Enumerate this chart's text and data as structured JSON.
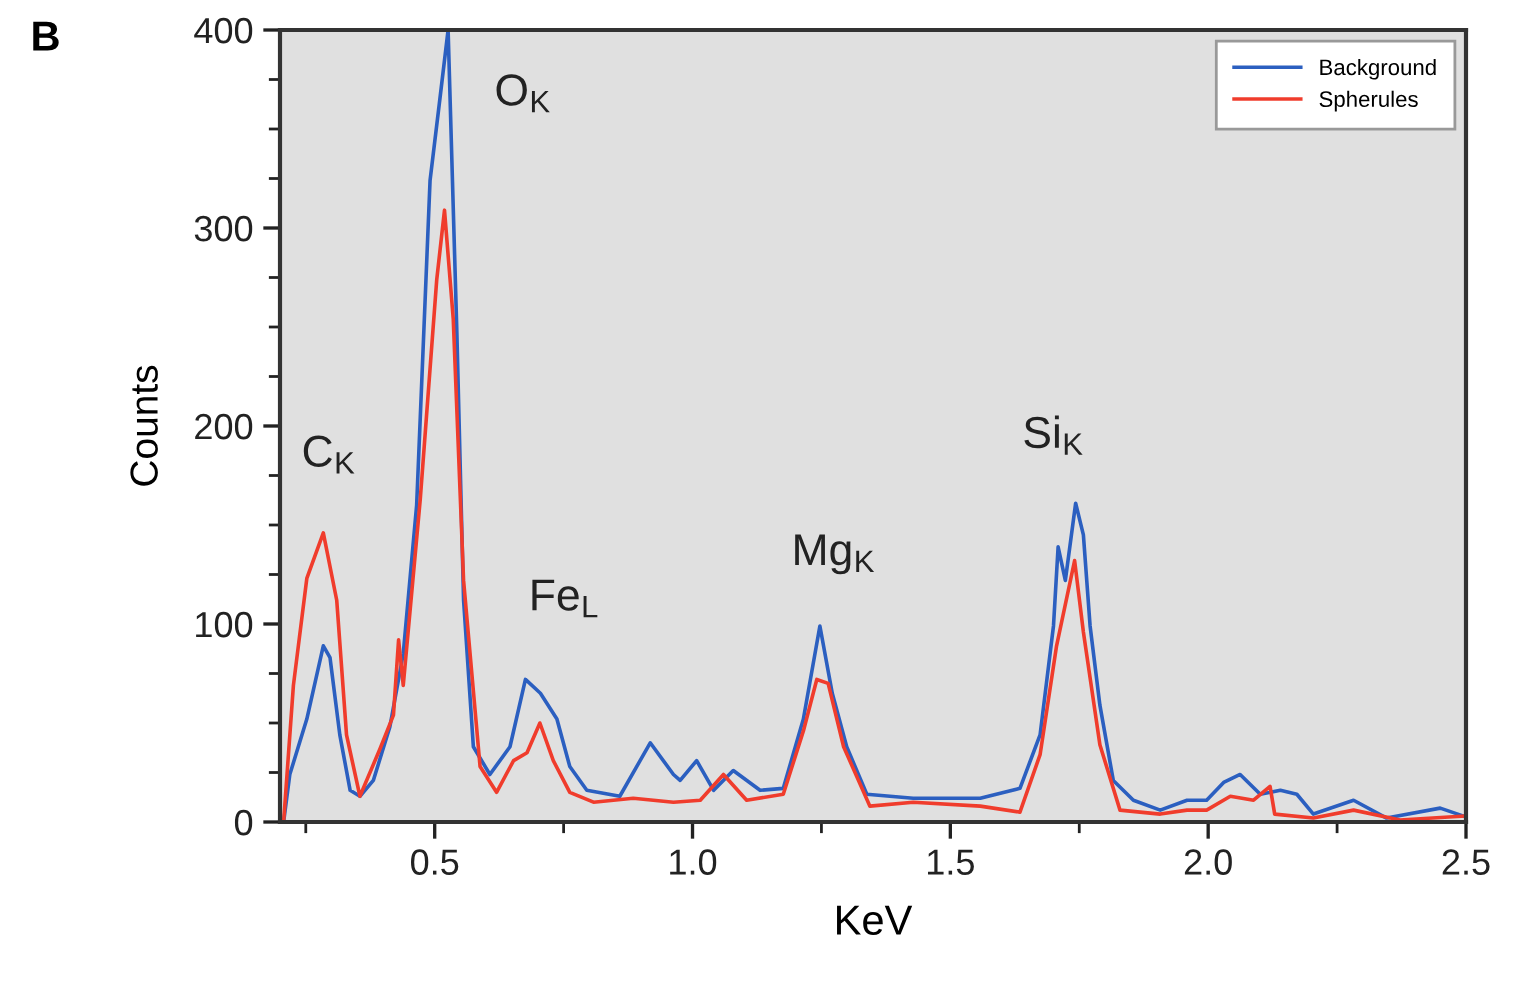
{
  "chart_data": {
    "type": "line",
    "xlabel": "KeV",
    "ylabel": "Counts",
    "xlim": [
      0.2,
      2.5
    ],
    "ylim": [
      0,
      400
    ],
    "xticks": [
      {
        "value": 0.25,
        "label": null
      },
      0.5,
      {
        "value": 0.75,
        "label": null
      },
      {
        "value": 1,
        "label": "1.0"
      },
      {
        "value": 1.25,
        "label": null
      },
      1.5,
      {
        "value": 1.75,
        "label": null
      },
      {
        "value": 2,
        "label": "2.0"
      },
      {
        "value": 2.25,
        "label": null
      },
      2.5
    ],
    "yticks": [
      0,
      {
        "value": 25,
        "label": null
      },
      {
        "value": 50,
        "label": null
      },
      {
        "value": 75,
        "label": null
      },
      100,
      {
        "value": 125,
        "label": null
      },
      {
        "value": 150,
        "label": null
      },
      {
        "value": 175,
        "label": null
      },
      200,
      {
        "value": 225,
        "label": null
      },
      {
        "value": 250,
        "label": null
      },
      {
        "value": 275,
        "label": null
      },
      300,
      {
        "value": 325,
        "label": null
      },
      {
        "value": 350,
        "label": null
      },
      {
        "value": 375,
        "label": null
      },
      400
    ],
    "grid": false,
    "legend": "top right",
    "marker": "none",
    "line_style": "solid",
    "series": [
      {
        "name": "Background",
        "color": "#2b5fc0",
        "x": [
          0.207,
          0.219,
          0.252,
          0.284,
          0.297,
          0.316,
          0.336,
          0.355,
          0.381,
          0.413,
          0.439,
          0.465,
          0.491,
          0.51,
          0.526,
          0.543,
          0.556,
          0.575,
          0.607,
          0.646,
          0.676,
          0.705,
          0.737,
          0.762,
          0.795,
          0.859,
          0.918,
          0.963,
          0.976,
          1.008,
          1.041,
          1.079,
          1.131,
          1.176,
          1.215,
          1.247,
          1.271,
          1.299,
          1.338,
          1.428,
          1.558,
          1.635,
          1.674,
          1.7,
          1.709,
          1.723,
          1.743,
          1.758,
          1.771,
          1.79,
          1.816,
          1.855,
          1.907,
          1.959,
          1.997,
          2.03,
          2.062,
          2.101,
          2.14,
          2.172,
          2.204,
          2.282,
          2.346,
          2.45,
          2.495
        ],
        "values": [
          0,
          24,
          52,
          89,
          83,
          44,
          16,
          13,
          21,
          48,
          85,
          160,
          324,
          365,
          400,
          247,
          112,
          38,
          24,
          38,
          72,
          65,
          52,
          28,
          16,
          13,
          40,
          24,
          21,
          31,
          16,
          26,
          16,
          17,
          52,
          99,
          65,
          38,
          14,
          12,
          12,
          17,
          44,
          99,
          139,
          122,
          161,
          145,
          99,
          59,
          21,
          11,
          6,
          11,
          11,
          20,
          24,
          14,
          16,
          14,
          4,
          11,
          2,
          7,
          3
        ]
      },
      {
        "name": "Spherules",
        "color": "#f03c2c",
        "x": [
          0.207,
          0.226,
          0.252,
          0.284,
          0.31,
          0.329,
          0.355,
          0.394,
          0.42,
          0.43,
          0.439,
          0.472,
          0.504,
          0.519,
          0.536,
          0.556,
          0.588,
          0.62,
          0.653,
          0.679,
          0.704,
          0.73,
          0.762,
          0.808,
          0.885,
          0.963,
          1.015,
          1.06,
          1.105,
          1.176,
          1.215,
          1.241,
          1.263,
          1.293,
          1.344,
          1.428,
          1.558,
          1.635,
          1.674,
          1.706,
          1.741,
          1.758,
          1.79,
          1.829,
          1.907,
          1.959,
          1.997,
          2.043,
          2.088,
          2.12,
          2.129,
          2.204,
          2.282,
          2.372,
          2.495
        ],
        "values": [
          0,
          69,
          123,
          146,
          112,
          44,
          13,
          37,
          54,
          92,
          69,
          163,
          274,
          309,
          254,
          122,
          28,
          15,
          31,
          35,
          50,
          31,
          15,
          10,
          12,
          10,
          11,
          24,
          11,
          14,
          46,
          72,
          70,
          38,
          8,
          10,
          8,
          5,
          34,
          89,
          132,
          96,
          39,
          6,
          4,
          6,
          6,
          13,
          11,
          18,
          4,
          2,
          6,
          1,
          3
        ]
      }
    ],
    "annotations": [
      "B",
      {
        "text": "C$_{K}$",
        "x": 0.284,
        "y": 146
      },
      {
        "text": "O$_{K}$",
        "x": 0.526,
        "y": 400
      },
      {
        "text": "Fe$_{L}$",
        "x": 0.676,
        "y": 72
      },
      {
        "text": "Mg$_{K}$",
        "x": 1.247,
        "y": 99
      },
      {
        "text": "Si$_{K}$",
        "x": 1.743,
        "y": 161
      }
    ]
  }
}
